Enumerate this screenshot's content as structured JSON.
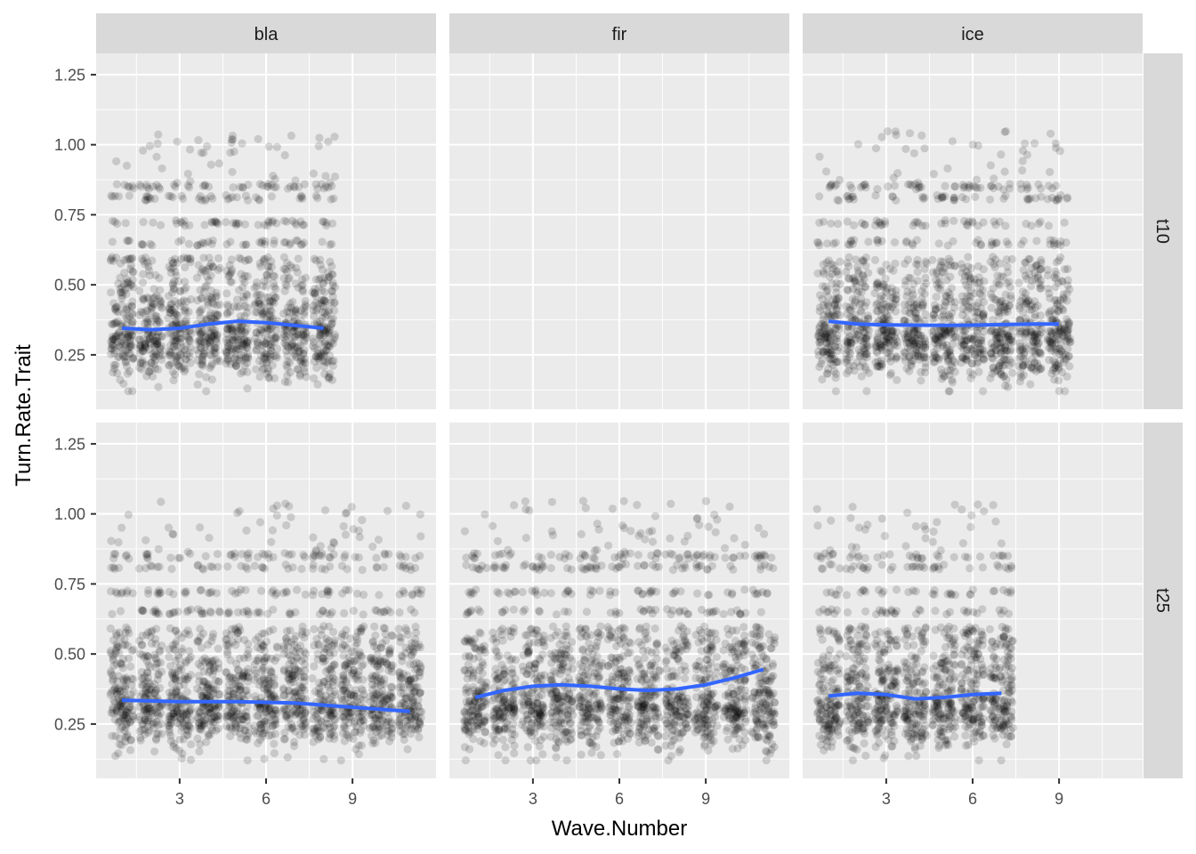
{
  "chart_data": {
    "type": "scatter",
    "title": "",
    "xlabel": "Wave.Number",
    "ylabel": "Turn.Rate.Trait",
    "xlim": [
      0.1,
      11.9
    ],
    "ylim": [
      0.056,
      1.326
    ],
    "x_ticks": [
      3,
      6,
      9
    ],
    "x_tick_labels": [
      "3",
      "6",
      "9"
    ],
    "y_ticks": [
      0.25,
      0.5,
      0.75,
      1.0,
      1.25
    ],
    "y_tick_labels": [
      "0.25",
      "0.50",
      "0.75",
      "1.00",
      "1.25"
    ],
    "grid": true,
    "facet_cols": [
      "bla",
      "fir",
      "ice"
    ],
    "facet_rows": [
      "t10",
      "t25"
    ],
    "point_color": "#000000",
    "point_alpha": 0.15,
    "smooth_color": "#3366FF",
    "panels": [
      {
        "col": "bla",
        "row": "t10",
        "waves": [
          1,
          8
        ],
        "smooth": {
          "x": [
            1,
            2,
            3,
            4,
            5,
            6,
            7,
            8
          ],
          "y": [
            0.345,
            0.34,
            0.345,
            0.36,
            0.37,
            0.365,
            0.355,
            0.345
          ]
        }
      },
      {
        "col": "fir",
        "row": "t10",
        "waves": null,
        "smooth": null
      },
      {
        "col": "ice",
        "row": "t10",
        "waves": [
          1,
          9
        ],
        "smooth": {
          "x": [
            1,
            2,
            3,
            4,
            5,
            6,
            7,
            8,
            9
          ],
          "y": [
            0.37,
            0.36,
            0.357,
            0.356,
            0.355,
            0.356,
            0.358,
            0.36,
            0.36
          ]
        }
      },
      {
        "col": "bla",
        "row": "t25",
        "waves": [
          1,
          11
        ],
        "smooth": {
          "x": [
            1,
            3,
            5,
            7,
            9,
            11
          ],
          "y": [
            0.335,
            0.33,
            0.33,
            0.325,
            0.31,
            0.295
          ]
        }
      },
      {
        "col": "fir",
        "row": "t25",
        "waves": [
          1,
          11
        ],
        "smooth": {
          "x": [
            1,
            2,
            3,
            4,
            5,
            6,
            7,
            8,
            9,
            10,
            11
          ],
          "y": [
            0.345,
            0.37,
            0.385,
            0.39,
            0.385,
            0.375,
            0.37,
            0.375,
            0.39,
            0.415,
            0.445
          ]
        }
      },
      {
        "col": "ice",
        "row": "t25",
        "waves": [
          1,
          7
        ],
        "smooth": {
          "x": [
            1,
            2,
            3,
            4,
            5,
            6,
            7
          ],
          "y": [
            0.35,
            0.36,
            0.355,
            0.34,
            0.345,
            0.355,
            0.36
          ]
        }
      }
    ]
  }
}
